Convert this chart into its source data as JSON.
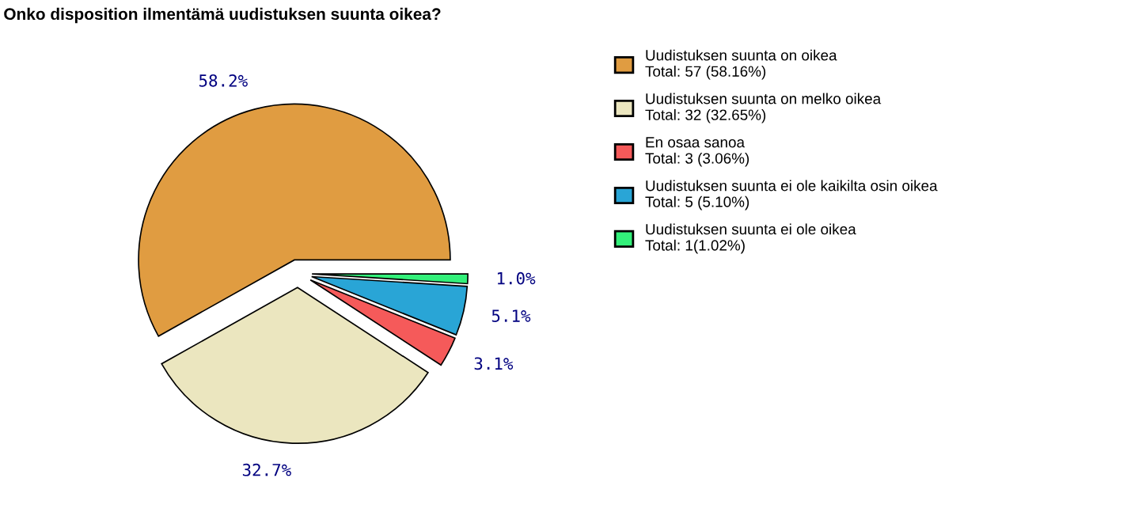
{
  "chart_data": {
    "type": "pie",
    "title": "Onko disposition ilmentämä uudistuksen suunta oikea?",
    "categories": [
      "Uudistuksen suunta on oikea",
      "Uudistuksen suunta on melko oikea",
      "En osaa sanoa",
      "Uudistuksen suunta ei ole kaikilta osin oikea",
      "Uudistuksen suunta ei ole oikea"
    ],
    "values": [
      58.2,
      32.7,
      3.1,
      5.1,
      1.0
    ],
    "value_labels": [
      "58.2%",
      "32.7%",
      "3.1%",
      "5.1%",
      "1.0%"
    ],
    "colors": [
      "#e09c41",
      "#ebe6bf",
      "#f55a5a",
      "#29a5d6",
      "#33f07a"
    ],
    "annotations": [
      "Total: 57 (58.16%)",
      "Total: 32 (32.65%)",
      "Total: 3 (3.06%)",
      "Total: 5 (5.10%)",
      "Total: 1(1.02%)"
    ],
    "legend": "right"
  }
}
